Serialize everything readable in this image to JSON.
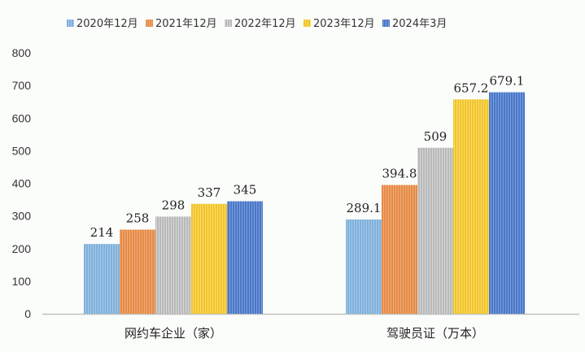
{
  "chart_data": {
    "type": "bar",
    "categories": [
      "网约车企业（家）",
      "驾驶员证（万本）"
    ],
    "series": [
      {
        "name": "2020年12月",
        "values": [
          214,
          289.1
        ],
        "labels": [
          "214",
          "289.1"
        ],
        "color": "#7fb0dc",
        "stripe": "#a8cbe8"
      },
      {
        "name": "2021年12月",
        "values": [
          258,
          394.8
        ],
        "labels": [
          "258",
          "394.8"
        ],
        "color": "#e58a45",
        "stripe": "#f0ae7c"
      },
      {
        "name": "2022年12月",
        "values": [
          298,
          509
        ],
        "labels": [
          "298",
          "509"
        ],
        "color": "#b8b8b8",
        "stripe": "#d9d9d9"
      },
      {
        "name": "2023年12月",
        "values": [
          337,
          657.2
        ],
        "labels": [
          "337",
          "657.2"
        ],
        "color": "#f2c42c",
        "stripe": "#f8dc6c"
      },
      {
        "name": "2024年3月",
        "values": [
          345,
          679.1
        ],
        "labels": [
          "345",
          "679.1"
        ],
        "color": "#4a78c8",
        "stripe": "#7c9edb"
      }
    ],
    "ylim": [
      0,
      800
    ],
    "yticks": [
      "0",
      "100",
      "200",
      "300",
      "400",
      "500",
      "600",
      "700",
      "800"
    ],
    "grid": false,
    "legend_position": "top",
    "title": "",
    "xlabel": "",
    "ylabel": ""
  }
}
